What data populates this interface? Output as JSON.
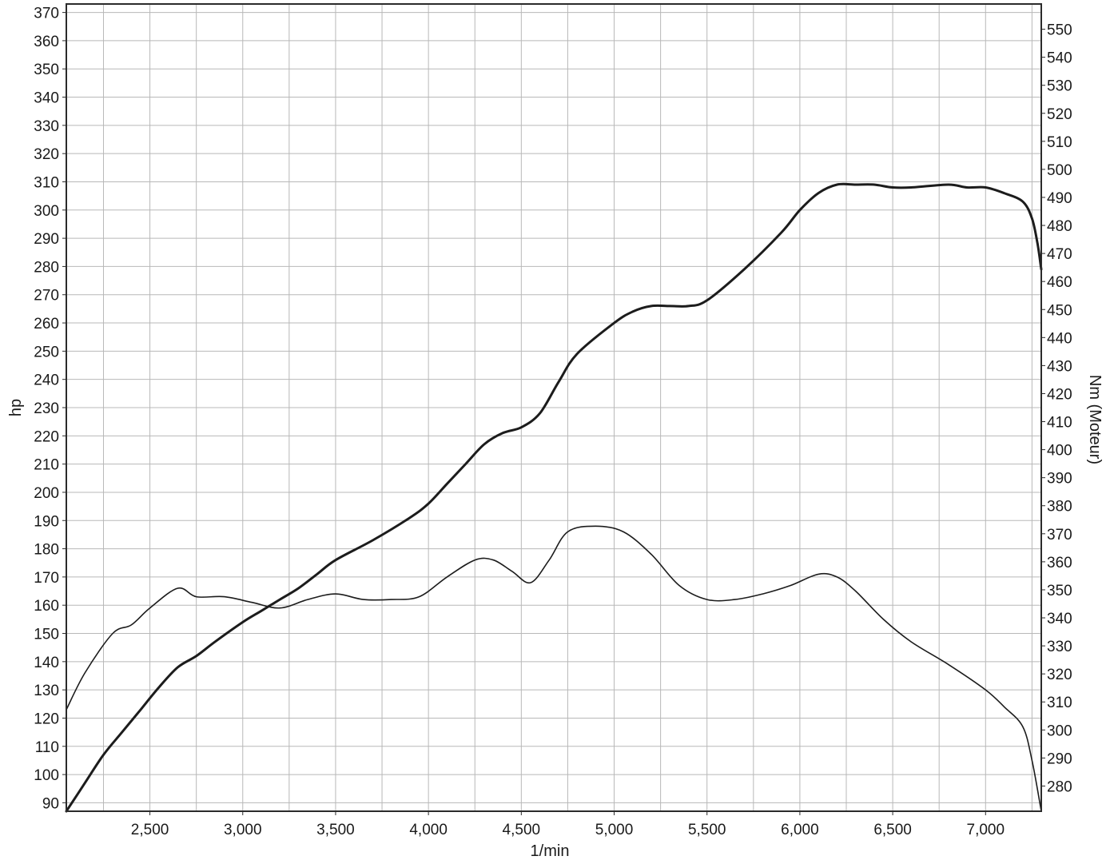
{
  "chart_data": {
    "type": "line",
    "title": "",
    "xlabel": "1/min",
    "ylabel_left": "hp",
    "ylabel_right": "Nm (Moteur)",
    "xlim": [
      2050,
      7300
    ],
    "ylim_left": [
      87,
      373
    ],
    "ylim_right": [
      271,
      559
    ],
    "x_ticks": [
      2500,
      3000,
      3500,
      4000,
      4500,
      5000,
      5500,
      6000,
      6500,
      7000
    ],
    "x_tick_labels": [
      "2,500",
      "3,000",
      "3,500",
      "4,000",
      "4,500",
      "5,000",
      "5,500",
      "6,000",
      "6,500",
      "7,000"
    ],
    "y_left_ticks": [
      90,
      100,
      110,
      120,
      130,
      140,
      150,
      160,
      170,
      180,
      190,
      200,
      210,
      220,
      230,
      240,
      250,
      260,
      270,
      280,
      290,
      300,
      310,
      320,
      330,
      340,
      350,
      360,
      370
    ],
    "y_right_ticks": [
      280,
      290,
      300,
      310,
      320,
      330,
      340,
      350,
      360,
      370,
      380,
      390,
      400,
      410,
      420,
      430,
      440,
      450,
      460,
      470,
      480,
      490,
      500,
      510,
      520,
      530,
      540,
      550
    ],
    "grid": true,
    "series": [
      {
        "axis": "left",
        "line": "thick",
        "x": [
          2050,
          2150,
          2250,
          2350,
          2450,
          2550,
          2650,
          2750,
          2850,
          3000,
          3100,
          3200,
          3300,
          3400,
          3500,
          3700,
          3900,
          4000,
          4100,
          4200,
          4300,
          4400,
          4500,
          4600,
          4700,
          4800,
          5000,
          5100,
          5200,
          5300,
          5400,
          5500,
          5700,
          5900,
          6000,
          6100,
          6200,
          6300,
          6400,
          6500,
          6600,
          6800,
          6900,
          7000,
          7100,
          7200,
          7250,
          7280,
          7300
        ],
        "values": [
          87,
          97,
          107,
          115,
          123,
          131,
          138,
          142,
          147,
          154,
          158,
          162,
          166,
          171,
          176,
          183,
          191,
          196,
          203,
          210,
          217,
          221,
          223,
          228,
          239,
          249,
          260,
          264,
          266,
          266,
          266,
          268,
          279,
          292,
          300,
          306,
          309,
          309,
          309,
          308,
          308,
          309,
          308,
          308,
          306,
          303,
          297,
          288,
          279
        ]
      },
      {
        "axis": "left",
        "line": "thin",
        "x": [
          2050,
          2150,
          2300,
          2400,
          2500,
          2650,
          2750,
          2900,
          3050,
          3200,
          3350,
          3500,
          3650,
          3800,
          3950,
          4100,
          4250,
          4350,
          4450,
          4550,
          4650,
          4750,
          4900,
          5050,
          5200,
          5350,
          5500,
          5650,
          5800,
          5950,
          6100,
          6200,
          6300,
          6450,
          6600,
          6800,
          7000,
          7100,
          7200,
          7250,
          7300
        ],
        "values": [
          123,
          136,
          150,
          153,
          159,
          166,
          163,
          163,
          161,
          159,
          162,
          164,
          162,
          162,
          163,
          170,
          176,
          176,
          172,
          168,
          176,
          186,
          188,
          186,
          178,
          167,
          162,
          162,
          164,
          167,
          171,
          170,
          165,
          155,
          147,
          139,
          130,
          124,
          117,
          105,
          87
        ]
      }
    ]
  }
}
